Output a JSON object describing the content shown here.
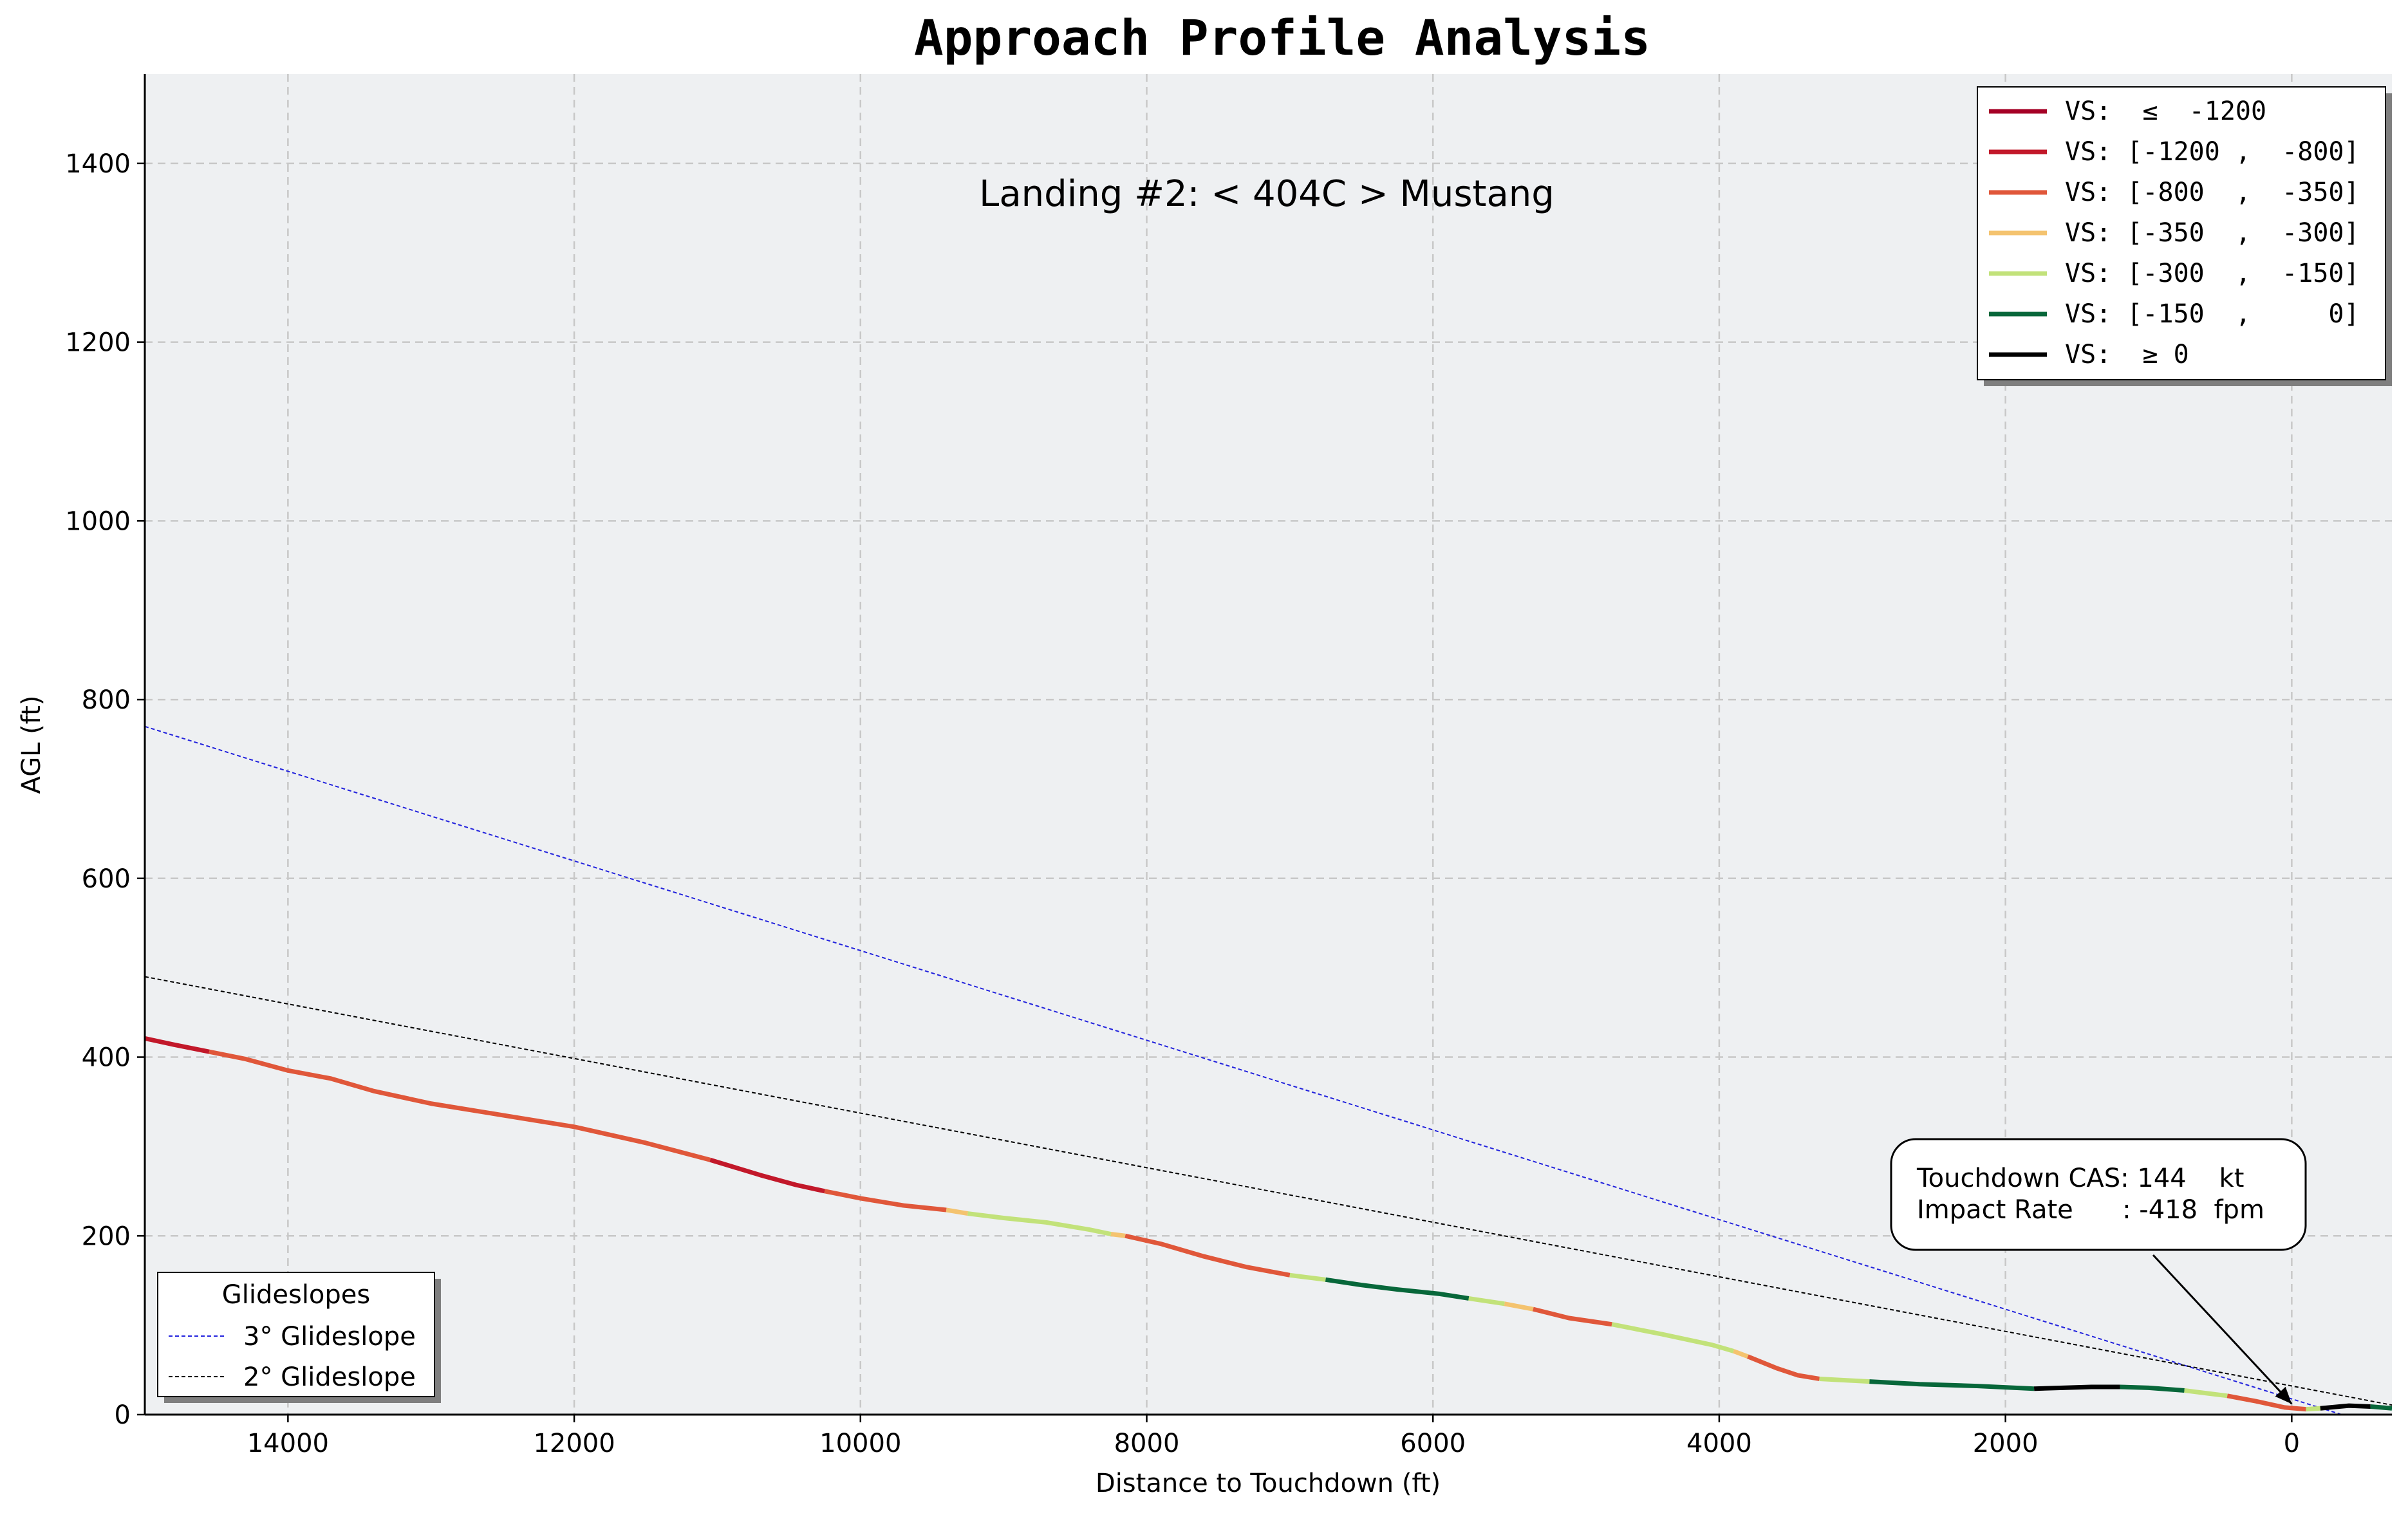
{
  "chart_data": {
    "type": "line",
    "title": "Approach Profile Analysis",
    "subtitle": "Landing #2: < 404C > Mustang",
    "xlabel": "Distance to Touchdown (ft)",
    "ylabel": "AGL (ft)",
    "xlim": [
      15000,
      -700
    ],
    "ylim": [
      0,
      1500
    ],
    "x_axis_reversed": true,
    "x_ticks": [
      14000,
      12000,
      10000,
      8000,
      6000,
      4000,
      2000,
      0
    ],
    "y_ticks": [
      0,
      200,
      400,
      600,
      800,
      1000,
      1200,
      1400
    ],
    "grid": true,
    "annotation": {
      "line1": "Touchdown CAS: 144    kt",
      "line2": "Impact Rate      : -418  fpm",
      "arrow_target": [
        0,
        12
      ]
    },
    "vs_legend": {
      "placement": "top-right",
      "entries": [
        {
          "label": "VS:  ≤  -1200",
          "color": "#a50026"
        },
        {
          "label": "VS: [-1200 ,  -800]",
          "color": "#c2182a"
        },
        {
          "label": "VS: [-800  ,  -350]",
          "color": "#e0573a"
        },
        {
          "label": "VS: [-350  ,  -300]",
          "color": "#f4c36f"
        },
        {
          "label": "VS: [-300  ,  -150]",
          "color": "#c2e27a"
        },
        {
          "label": "VS: [-150  ,     0]",
          "color": "#07673a"
        },
        {
          "label": "VS:  ≥ 0",
          "color": "#000000"
        }
      ]
    },
    "glideslopes": {
      "title": "Glideslopes",
      "placement": "bottom-left",
      "series": [
        {
          "name": "3° Glideslope",
          "color": "#2222dd",
          "points": [
            [
              15000,
              770
            ],
            [
              -350,
              0
            ]
          ]
        },
        {
          "name": "2° Glideslope",
          "color": "#000000",
          "points": [
            [
              15000,
              490
            ],
            [
              -1050,
              0
            ]
          ]
        }
      ]
    },
    "profile_segments": [
      {
        "color": "#c2182a",
        "points": [
          [
            15000,
            421
          ],
          [
            14800,
            414
          ],
          [
            14550,
            406
          ]
        ]
      },
      {
        "color": "#e0573a",
        "points": [
          [
            14550,
            406
          ],
          [
            14300,
            398
          ],
          [
            14000,
            385
          ],
          [
            13700,
            376
          ],
          [
            13400,
            362
          ],
          [
            13000,
            348
          ],
          [
            12500,
            335
          ],
          [
            12000,
            322
          ],
          [
            11500,
            304
          ],
          [
            11050,
            285
          ]
        ]
      },
      {
        "color": "#c2182a",
        "points": [
          [
            11050,
            285
          ],
          [
            10700,
            268
          ],
          [
            10450,
            257
          ],
          [
            10250,
            250
          ]
        ]
      },
      {
        "color": "#e0573a",
        "points": [
          [
            10250,
            250
          ],
          [
            10000,
            242
          ],
          [
            9700,
            234
          ],
          [
            9400,
            229
          ]
        ]
      },
      {
        "color": "#f4c36f",
        "points": [
          [
            9400,
            229
          ],
          [
            9250,
            225
          ]
        ]
      },
      {
        "color": "#c2e27a",
        "points": [
          [
            9250,
            225
          ],
          [
            9000,
            220
          ],
          [
            8700,
            215
          ],
          [
            8400,
            207
          ],
          [
            8250,
            202
          ]
        ]
      },
      {
        "color": "#f4c36f",
        "points": [
          [
            8250,
            202
          ],
          [
            8150,
            200
          ]
        ]
      },
      {
        "color": "#e0573a",
        "points": [
          [
            8150,
            200
          ],
          [
            7900,
            191
          ],
          [
            7600,
            177
          ],
          [
            7300,
            165
          ],
          [
            7000,
            156
          ]
        ]
      },
      {
        "color": "#c2e27a",
        "points": [
          [
            7000,
            156
          ],
          [
            6750,
            151
          ]
        ]
      },
      {
        "color": "#07673a",
        "points": [
          [
            6750,
            151
          ],
          [
            6500,
            145
          ],
          [
            6250,
            140
          ],
          [
            5950,
            135
          ],
          [
            5750,
            130
          ]
        ]
      },
      {
        "color": "#c2e27a",
        "points": [
          [
            5750,
            130
          ],
          [
            5500,
            124
          ]
        ]
      },
      {
        "color": "#f4c36f",
        "points": [
          [
            5500,
            124
          ],
          [
            5300,
            118
          ]
        ]
      },
      {
        "color": "#e0573a",
        "points": [
          [
            5300,
            118
          ],
          [
            5050,
            108
          ],
          [
            4750,
            101
          ]
        ]
      },
      {
        "color": "#c2e27a",
        "points": [
          [
            4750,
            101
          ],
          [
            4400,
            90
          ],
          [
            4050,
            78
          ],
          [
            3900,
            71
          ]
        ]
      },
      {
        "color": "#f4c36f",
        "points": [
          [
            3900,
            71
          ],
          [
            3800,
            65
          ]
        ]
      },
      {
        "color": "#e0573a",
        "points": [
          [
            3800,
            65
          ],
          [
            3600,
            52
          ],
          [
            3450,
            44
          ],
          [
            3300,
            40
          ]
        ]
      },
      {
        "color": "#c2e27a",
        "points": [
          [
            3300,
            40
          ],
          [
            2950,
            37
          ]
        ]
      },
      {
        "color": "#07673a",
        "points": [
          [
            2950,
            37
          ],
          [
            2600,
            34
          ],
          [
            2200,
            32
          ],
          [
            1800,
            29
          ]
        ]
      },
      {
        "color": "#000000",
        "points": [
          [
            1800,
            29
          ],
          [
            1600,
            30
          ],
          [
            1400,
            31
          ],
          [
            1200,
            31
          ]
        ]
      },
      {
        "color": "#07673a",
        "points": [
          [
            1200,
            31
          ],
          [
            1000,
            30
          ],
          [
            750,
            27
          ]
        ]
      },
      {
        "color": "#c2e27a",
        "points": [
          [
            750,
            27
          ],
          [
            450,
            21
          ]
        ]
      },
      {
        "color": "#e0573a",
        "points": [
          [
            450,
            21
          ],
          [
            250,
            15
          ],
          [
            50,
            8
          ],
          [
            -100,
            6
          ]
        ]
      },
      {
        "color": "#c2e27a",
        "points": [
          [
            -100,
            6
          ],
          [
            -200,
            7
          ]
        ]
      },
      {
        "color": "#000000",
        "points": [
          [
            -200,
            7
          ],
          [
            -400,
            10
          ],
          [
            -550,
            9
          ]
        ]
      },
      {
        "color": "#07673a",
        "points": [
          [
            -550,
            9
          ],
          [
            -700,
            7
          ]
        ]
      }
    ]
  }
}
